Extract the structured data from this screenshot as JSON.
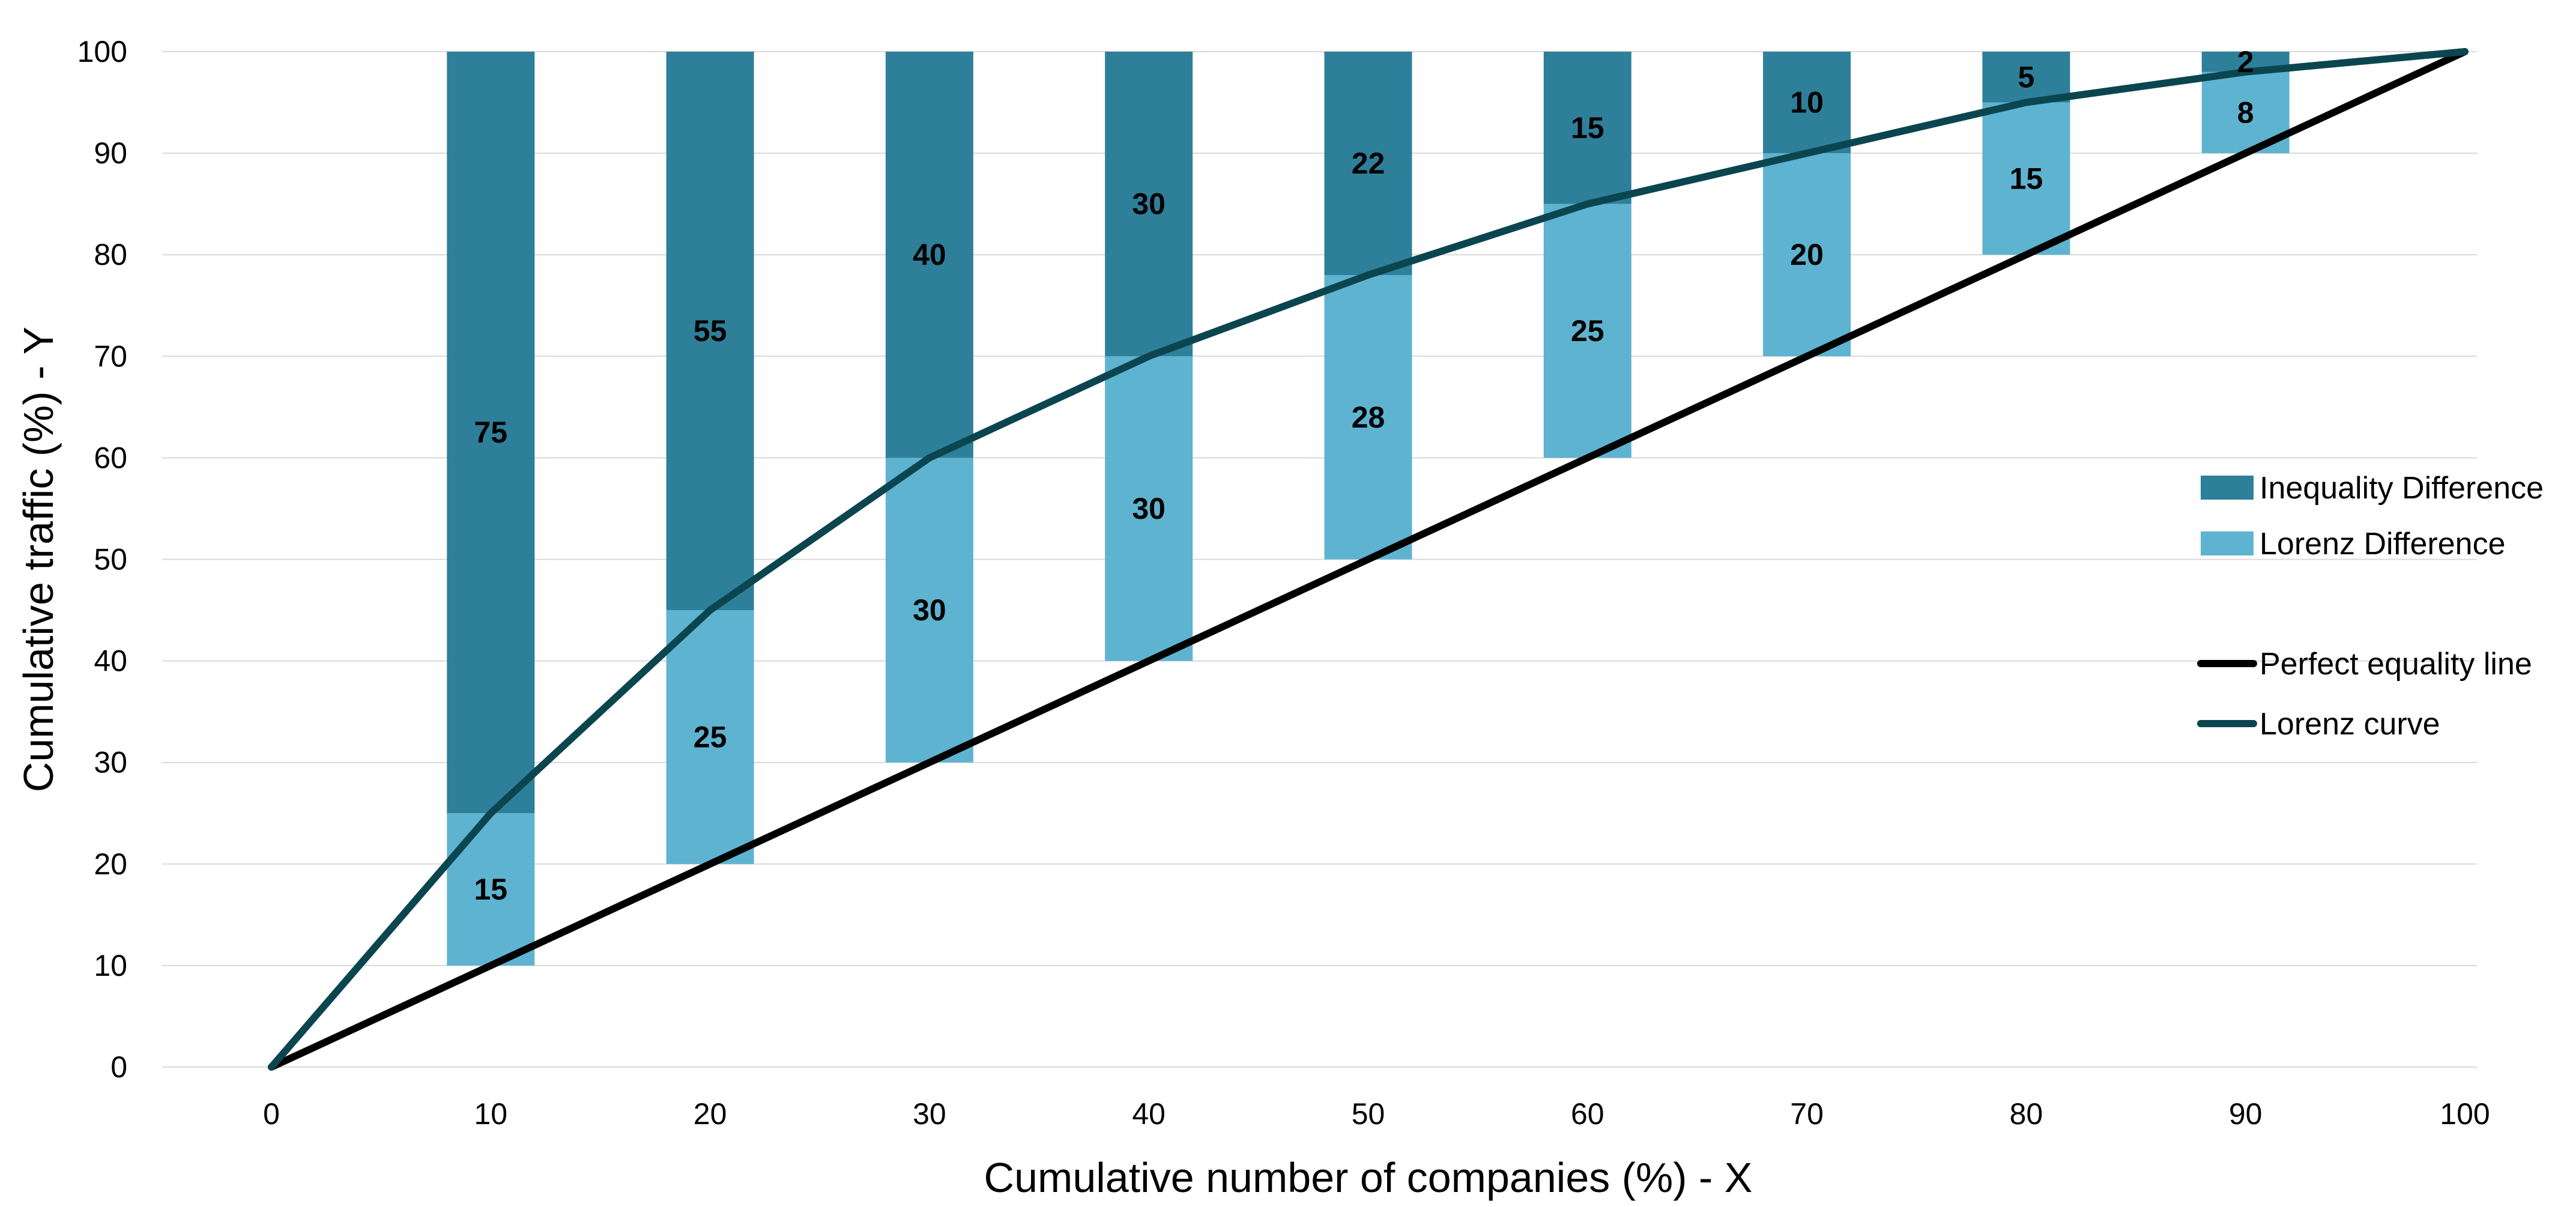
{
  "chart_data": {
    "type": "bar",
    "xlabel": "Cumulative number of companies (%) - X",
    "ylabel": "Cumulative traffic (%) - Y",
    "xlim": [
      0,
      100
    ],
    "ylim": [
      0,
      100
    ],
    "x_ticks": [
      0,
      10,
      20,
      30,
      40,
      50,
      60,
      70,
      80,
      90,
      100
    ],
    "y_ticks": [
      0,
      10,
      20,
      30,
      40,
      50,
      60,
      70,
      80,
      90,
      100
    ],
    "grid": "horizontal",
    "stacked": true,
    "categories": [
      10,
      20,
      30,
      40,
      50,
      60,
      70,
      80,
      90
    ],
    "bar_base": [
      10,
      20,
      30,
      40,
      50,
      60,
      70,
      80,
      90
    ],
    "series": [
      {
        "name": "Lorenz Difference",
        "color": "#5eb3d0",
        "values": [
          15,
          25,
          30,
          30,
          28,
          25,
          20,
          15,
          8
        ]
      },
      {
        "name": "Inequality Difference",
        "color": "#2e7f9a",
        "values": [
          75,
          55,
          40,
          30,
          22,
          15,
          10,
          5,
          2
        ]
      }
    ],
    "lines": [
      {
        "name": "Perfect equality line",
        "color": "#000000",
        "x": [
          0,
          100
        ],
        "y": [
          0,
          100
        ]
      },
      {
        "name": "Lorenz curve",
        "color": "#0b4650",
        "x": [
          0,
          10,
          20,
          30,
          40,
          50,
          60,
          70,
          80,
          90,
          100
        ],
        "y": [
          0,
          25,
          45,
          60,
          70,
          78,
          85,
          90,
          95,
          98,
          100
        ]
      }
    ],
    "legend": {
      "position": "right",
      "items": [
        "Inequality Difference",
        "Lorenz Difference",
        "Perfect equality line",
        "Lorenz curve"
      ]
    }
  }
}
